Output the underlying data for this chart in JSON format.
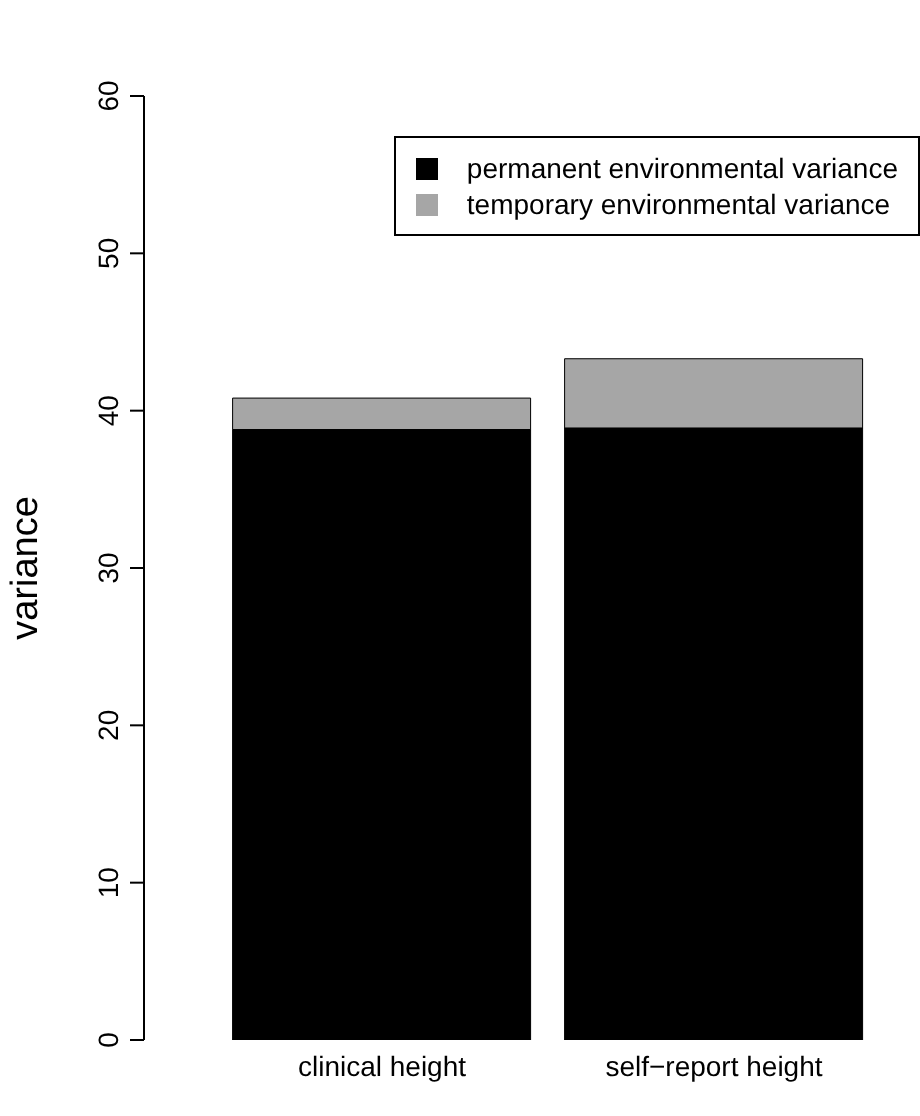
{
  "chart_data": {
    "type": "bar",
    "stacked": true,
    "ylabel": "variance",
    "categories": [
      "clinical height",
      "self−report height"
    ],
    "series": [
      {
        "name": "permanent environmental variance",
        "color": "#000000",
        "values": [
          38.8,
          38.9
        ]
      },
      {
        "name": "temporary environmental variance",
        "color": "#a6a6a6",
        "values": [
          2.0,
          4.4
        ]
      }
    ],
    "ylim": [
      0,
      60
    ],
    "yticks": [
      0,
      10,
      20,
      30,
      40,
      50,
      60
    ],
    "grid": false,
    "legend": "top right"
  }
}
